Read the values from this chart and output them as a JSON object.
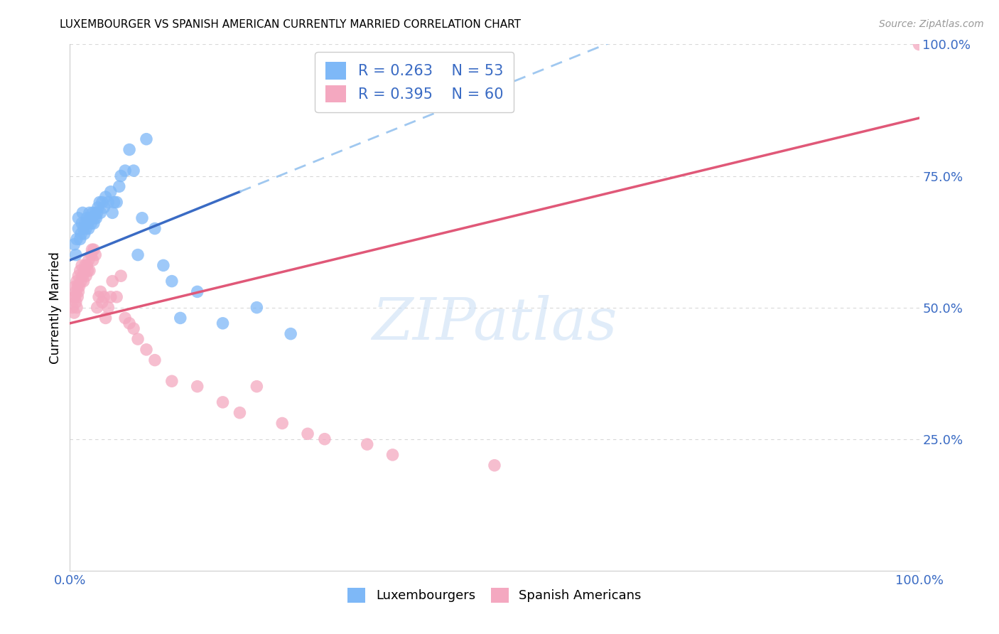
{
  "title": "LUXEMBOURGER VS SPANISH AMERICAN CURRENTLY MARRIED CORRELATION CHART",
  "source": "Source: ZipAtlas.com",
  "ylabel": "Currently Married",
  "blue_color": "#7eb8f7",
  "pink_color": "#f4a8c0",
  "blue_line_color": "#3a6bc4",
  "pink_line_color": "#e05878",
  "blue_dashed_color": "#a0c8f0",
  "background_color": "#ffffff",
  "grid_color": "#d8d8d8",
  "legend_label_color": "#3a6bc4",
  "right_tick_color": "#3a6bc4",
  "bottom_tick_color": "#3a6bc4",
  "blue_R": "R = 0.263",
  "blue_N": "N = 53",
  "pink_R": "R = 0.395",
  "pink_N": "N = 60",
  "blue_x": [
    0.005,
    0.007,
    0.008,
    0.01,
    0.01,
    0.012,
    0.013,
    0.014,
    0.015,
    0.016,
    0.017,
    0.018,
    0.019,
    0.02,
    0.021,
    0.022,
    0.023,
    0.024,
    0.025,
    0.026,
    0.027,
    0.028,
    0.029,
    0.03,
    0.031,
    0.032,
    0.033,
    0.035,
    0.036,
    0.038,
    0.04,
    0.042,
    0.045,
    0.048,
    0.05,
    0.052,
    0.055,
    0.058,
    0.06,
    0.065,
    0.07,
    0.075,
    0.08,
    0.085,
    0.09,
    0.1,
    0.11,
    0.12,
    0.13,
    0.15,
    0.18,
    0.22,
    0.26
  ],
  "blue_y": [
    0.62,
    0.6,
    0.63,
    0.65,
    0.67,
    0.63,
    0.64,
    0.66,
    0.68,
    0.65,
    0.64,
    0.66,
    0.65,
    0.67,
    0.66,
    0.65,
    0.68,
    0.67,
    0.66,
    0.67,
    0.68,
    0.66,
    0.67,
    0.68,
    0.67,
    0.68,
    0.69,
    0.7,
    0.68,
    0.7,
    0.69,
    0.71,
    0.7,
    0.72,
    0.68,
    0.7,
    0.7,
    0.73,
    0.75,
    0.76,
    0.8,
    0.76,
    0.6,
    0.67,
    0.82,
    0.65,
    0.58,
    0.55,
    0.48,
    0.53,
    0.47,
    0.5,
    0.45
  ],
  "pink_x": [
    0.003,
    0.004,
    0.005,
    0.006,
    0.006,
    0.007,
    0.007,
    0.008,
    0.008,
    0.009,
    0.009,
    0.01,
    0.01,
    0.011,
    0.012,
    0.013,
    0.014,
    0.015,
    0.016,
    0.017,
    0.018,
    0.019,
    0.02,
    0.021,
    0.022,
    0.023,
    0.025,
    0.026,
    0.027,
    0.028,
    0.03,
    0.032,
    0.034,
    0.036,
    0.038,
    0.04,
    0.042,
    0.045,
    0.048,
    0.05,
    0.055,
    0.06,
    0.065,
    0.07,
    0.075,
    0.08,
    0.09,
    0.1,
    0.12,
    0.15,
    0.18,
    0.2,
    0.22,
    0.25,
    0.28,
    0.3,
    0.35,
    0.38,
    0.5,
    1.0
  ],
  "pink_y": [
    0.5,
    0.52,
    0.49,
    0.52,
    0.54,
    0.51,
    0.53,
    0.5,
    0.55,
    0.52,
    0.54,
    0.53,
    0.56,
    0.54,
    0.57,
    0.55,
    0.58,
    0.56,
    0.55,
    0.57,
    0.58,
    0.56,
    0.58,
    0.57,
    0.59,
    0.57,
    0.6,
    0.61,
    0.59,
    0.61,
    0.6,
    0.5,
    0.52,
    0.53,
    0.51,
    0.52,
    0.48,
    0.5,
    0.52,
    0.55,
    0.52,
    0.56,
    0.48,
    0.47,
    0.46,
    0.44,
    0.42,
    0.4,
    0.36,
    0.35,
    0.32,
    0.3,
    0.35,
    0.28,
    0.26,
    0.25,
    0.24,
    0.22,
    0.2,
    1.0
  ],
  "xlim": [
    0,
    1.0
  ],
  "ylim": [
    0,
    1.0
  ],
  "blue_line_solid_end": 0.2,
  "blue_line_dash_start": 0.2,
  "watermark_text": "ZIPatlas",
  "watermark_color": "#c8def5"
}
